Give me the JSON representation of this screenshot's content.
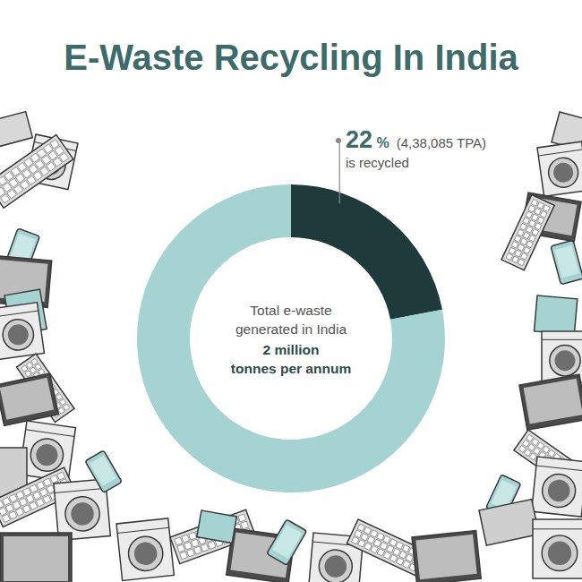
{
  "chart_data": {
    "type": "donut",
    "title": "E-Waste Recycling In India",
    "values": [
      22,
      78
    ],
    "value_labels": [
      "22 %",
      null
    ],
    "colors": [
      "#1e3a3a",
      "#a5d3d1"
    ],
    "data_labels": true,
    "annotations": {
      "recycled_detail": "(4,38,085 TPA)",
      "recycled_caption": "is recycled",
      "center_lines": [
        "Total e-waste",
        "generated in India"
      ],
      "center_value_lines": [
        "2 million",
        "tonnes per annum"
      ]
    }
  }
}
